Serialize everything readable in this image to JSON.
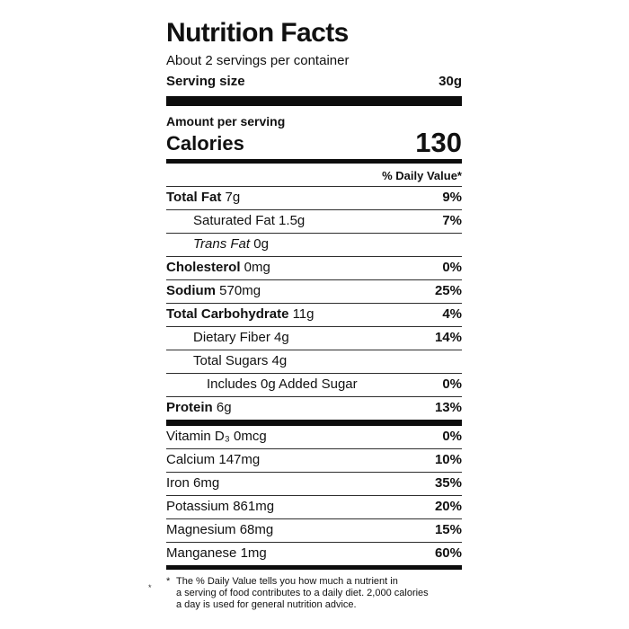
{
  "label": {
    "title": "Nutrition Facts",
    "servings_per_container": "About 2 servings per container",
    "serving_size_label": "Serving size",
    "serving_size_value": "30g",
    "amount_per_serving": "Amount per serving",
    "calories_label": "Calories",
    "calories_value": "130",
    "daily_value_header": "% Daily Value*",
    "rows": [
      {
        "name": "Total Fat",
        "amount": "7g",
        "dv": "9%",
        "style": "bold",
        "indent": 0
      },
      {
        "name": "Saturated Fat",
        "amount": "1.5g",
        "dv": "7%",
        "style": "regular",
        "indent": 1
      },
      {
        "name": "Trans Fat",
        "amount": "0g",
        "dv": "",
        "style": "italic",
        "indent": 1
      },
      {
        "name": "Cholesterol",
        "amount": "0mg",
        "dv": "0%",
        "style": "bold",
        "indent": 0
      },
      {
        "name": "Sodium",
        "amount": "570mg",
        "dv": "25%",
        "style": "bold",
        "indent": 0
      },
      {
        "name": "Total Carbohydrate",
        "amount": "11g",
        "dv": "4%",
        "style": "bold",
        "indent": 0
      },
      {
        "name": "Dietary Fiber",
        "amount": "4g",
        "dv": "14%",
        "style": "regular",
        "indent": 1
      },
      {
        "name": "Total Sugars",
        "amount": "4g",
        "dv": "",
        "style": "regular",
        "indent": 1
      },
      {
        "name": "Includes 0g Added Sugar",
        "amount": "",
        "dv": "0%",
        "style": "regular",
        "indent": 2
      },
      {
        "name": "Protein",
        "amount": "6g",
        "dv": "13%",
        "style": "bold",
        "indent": 0
      }
    ],
    "micronutrients": [
      {
        "name": "Vitamin D₃",
        "amount": "0mcg",
        "dv": "0%"
      },
      {
        "name": "Calcium",
        "amount": "147mg",
        "dv": "10%"
      },
      {
        "name": "Iron",
        "amount": "6mg",
        "dv": "35%"
      },
      {
        "name": "Potassium",
        "amount": "861mg",
        "dv": "20%"
      },
      {
        "name": "Magnesium",
        "amount": "68mg",
        "dv": "15%"
      },
      {
        "name": "Manganese",
        "amount": "1mg",
        "dv": "60%"
      }
    ],
    "footnote_marker": "*",
    "footnote_lines": [
      "The % Daily Value tells you how much a nutrient in",
      "a serving of food contributes to a daily diet. 2,000 calories",
      "a day is used for general nutrition advice."
    ],
    "margin_mark": "*"
  },
  "colors": {
    "background": "#ffffff",
    "text": "#111111",
    "bar": "#0d0d0d",
    "hairline": "#2e2e2e"
  }
}
